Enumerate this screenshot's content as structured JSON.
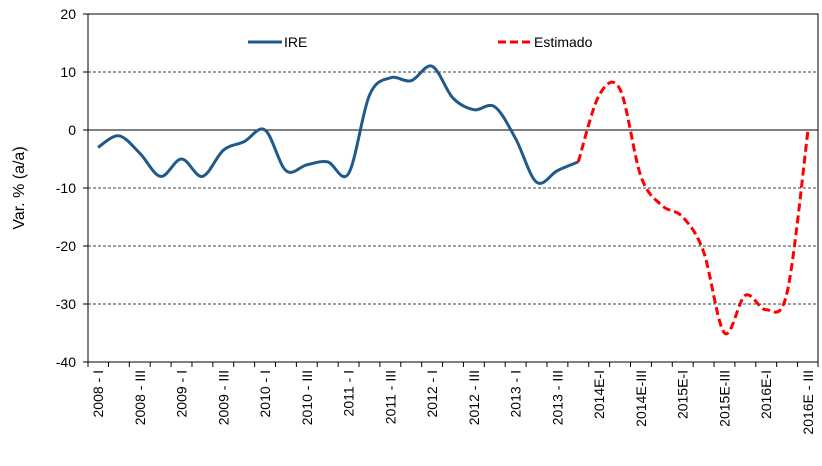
{
  "chart_data": {
    "type": "line",
    "y_label": "Var. % (a/a)",
    "categories": [
      "2008 - I",
      null,
      "2008 - III",
      null,
      "2009 - I",
      null,
      "2009 - III",
      null,
      "2010 - I",
      null,
      "2010 - III",
      null,
      "2011 - I",
      null,
      "2011 - III",
      null,
      "2012 - I",
      null,
      "2012 - III",
      null,
      "2013 - I",
      null,
      "2013 - III",
      null,
      "2014E-I",
      null,
      "2014E-III",
      null,
      "2015E-I",
      null,
      "2015E-III",
      null,
      "2016E-I",
      null,
      "2016E - III"
    ],
    "series": [
      {
        "name": "IRE",
        "color": "#1f5a8a",
        "dashed": false,
        "values": [
          -3,
          -1,
          -4,
          -8,
          -5,
          -8,
          -3.5,
          -2,
          0,
          -7,
          -6,
          -5.5,
          -7.5,
          6,
          9,
          8.5,
          11,
          5.5,
          3.5,
          4,
          -1.5,
          -9,
          -7,
          -5.5,
          null,
          null,
          null,
          null,
          null,
          null,
          null,
          null,
          null,
          null,
          null
        ]
      },
      {
        "name": "Estimado",
        "color": "#ff0000",
        "dashed": true,
        "values": [
          null,
          null,
          null,
          null,
          null,
          null,
          null,
          null,
          null,
          null,
          null,
          null,
          null,
          null,
          null,
          null,
          null,
          null,
          null,
          null,
          null,
          null,
          null,
          -5.5,
          6,
          7,
          -8,
          -13,
          -15,
          -21,
          -35,
          -28.5,
          -31,
          -28,
          0
        ]
      }
    ],
    "ylim": [
      -40,
      20
    ],
    "yticks": [
      -40,
      -30,
      -20,
      -10,
      0,
      10,
      20
    ],
    "grid": true
  }
}
